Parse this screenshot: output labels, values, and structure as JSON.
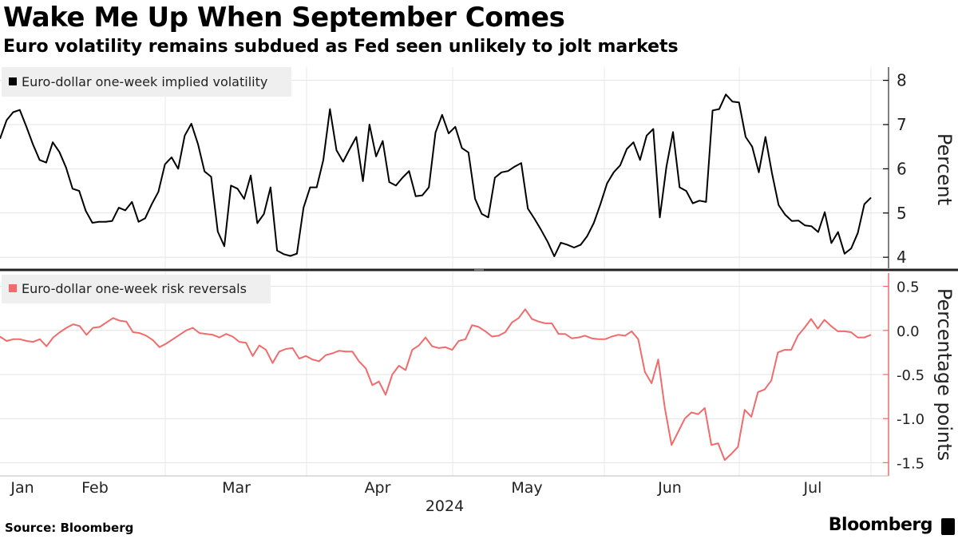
{
  "title": "Wake Me Up When September Comes",
  "subtitle": "Euro volatility remains subdued as Fed seen unlikely to jolt markets",
  "source": "Source: Bloomberg",
  "brand": "Bloomberg",
  "colors": {
    "vol_line": "#000000",
    "rr_line": "#f06b6b",
    "legend_bg": "#efefef",
    "grid": "#e0e0e0",
    "divider": "#222222"
  },
  "chart_data": [
    {
      "type": "line",
      "legend": "Euro-dollar one-week implied volatility",
      "ylabel": "Percent",
      "ylim": [
        3.75,
        8.3
      ],
      "yticks": [
        4,
        5,
        6,
        7,
        8
      ],
      "ytick_labels": [
        "4",
        "5",
        "6",
        "7",
        "8"
      ],
      "values": [
        6.68,
        7.1,
        7.28,
        7.33,
        6.95,
        6.55,
        6.2,
        6.14,
        6.6,
        6.38,
        6.03,
        5.55,
        5.5,
        5.05,
        4.78,
        4.8,
        4.8,
        4.82,
        5.12,
        5.06,
        5.25,
        4.8,
        4.88,
        5.2,
        5.48,
        6.1,
        6.26,
        6.0,
        6.75,
        7.02,
        6.56,
        5.94,
        5.82,
        4.58,
        4.25,
        5.62,
        5.55,
        5.32,
        5.85,
        4.77,
        4.98,
        5.58,
        4.15,
        4.07,
        4.03,
        4.08,
        5.12,
        5.58,
        5.58,
        6.2,
        7.35,
        6.42,
        6.16,
        6.45,
        6.72,
        5.72,
        7.0,
        6.28,
        6.63,
        5.7,
        5.62,
        5.8,
        5.95,
        5.38,
        5.4,
        5.58,
        6.82,
        7.22,
        6.8,
        6.95,
        6.47,
        6.37,
        5.32,
        4.98,
        4.9,
        5.8,
        5.92,
        5.95,
        6.05,
        6.13,
        5.1,
        4.87,
        4.62,
        4.35,
        4.02,
        4.33,
        4.28,
        4.22,
        4.28,
        4.48,
        4.78,
        5.2,
        5.67,
        5.92,
        6.08,
        6.45,
        6.6,
        6.2,
        6.75,
        6.9,
        4.9,
        6.05,
        6.83,
        5.58,
        5.5,
        5.22,
        5.28,
        5.25,
        7.32,
        7.35,
        7.68,
        7.52,
        7.5,
        6.72,
        6.5,
        5.92,
        6.72,
        5.9,
        5.18,
        4.96,
        4.82,
        4.83,
        4.72,
        4.7,
        4.57,
        5.02,
        4.32,
        4.57,
        4.08,
        4.2,
        4.55,
        5.2,
        5.35
      ]
    },
    {
      "type": "line",
      "legend": "Euro-dollar one-week risk reversals",
      "ylabel": "Percentage points",
      "ylim": [
        -1.65,
        0.65
      ],
      "yticks": [
        -1.5,
        -1.0,
        -0.5,
        0.0,
        0.5
      ],
      "ytick_labels": [
        "-1.5",
        "-1.0",
        "-0.5",
        "0.0",
        "0.5"
      ],
      "values": [
        -0.07,
        -0.12,
        -0.1,
        -0.1,
        -0.12,
        -0.13,
        -0.1,
        -0.18,
        -0.08,
        -0.02,
        0.03,
        0.07,
        0.05,
        -0.05,
        0.03,
        0.04,
        0.09,
        0.14,
        0.11,
        0.1,
        -0.02,
        -0.03,
        -0.06,
        -0.11,
        -0.19,
        -0.15,
        -0.1,
        -0.05,
        0.0,
        0.03,
        -0.03,
        -0.04,
        -0.05,
        -0.08,
        -0.04,
        -0.07,
        -0.13,
        -0.14,
        -0.29,
        -0.17,
        -0.22,
        -0.37,
        -0.24,
        -0.21,
        -0.2,
        -0.32,
        -0.29,
        -0.33,
        -0.35,
        -0.28,
        -0.26,
        -0.23,
        -0.24,
        -0.24,
        -0.35,
        -0.43,
        -0.62,
        -0.58,
        -0.73,
        -0.5,
        -0.4,
        -0.45,
        -0.22,
        -0.17,
        -0.08,
        -0.18,
        -0.2,
        -0.19,
        -0.22,
        -0.12,
        -0.1,
        0.06,
        0.04,
        -0.01,
        -0.07,
        -0.06,
        -0.02,
        0.09,
        0.14,
        0.24,
        0.13,
        0.1,
        0.08,
        0.08,
        -0.04,
        -0.04,
        -0.09,
        -0.08,
        -0.06,
        -0.09,
        -0.1,
        -0.1,
        -0.07,
        -0.05,
        -0.06,
        -0.01,
        -0.1,
        -0.47,
        -0.6,
        -0.33,
        -0.88,
        -1.3,
        -1.15,
        -1.0,
        -0.93,
        -0.95,
        -0.88,
        -1.3,
        -1.28,
        -1.47,
        -1.4,
        -1.32,
        -0.9,
        -0.98,
        -0.7,
        -0.67,
        -0.57,
        -0.25,
        -0.22,
        -0.22,
        -0.06,
        0.03,
        0.13,
        0.02,
        0.12,
        0.05,
        -0.01,
        -0.01,
        -0.02,
        -0.08,
        -0.08,
        -0.05
      ]
    }
  ],
  "x_axis": {
    "month_labels": [
      "Jan",
      "Feb",
      "Mar",
      "Apr",
      "May",
      "Jun",
      "Jul"
    ],
    "year_label": "2024"
  }
}
